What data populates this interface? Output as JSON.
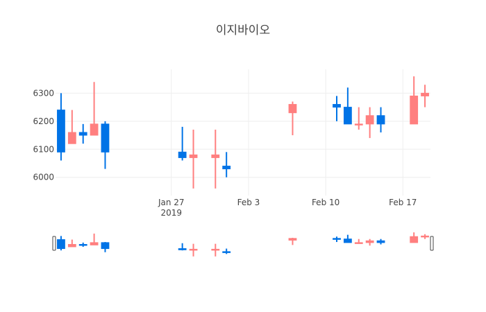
{
  "chart_data": {
    "type": "candlestick",
    "title": "이지바이오",
    "xlabel": "",
    "ylabel": "",
    "ylim": [
      5935,
      6385
    ],
    "yticks": [
      6000,
      6100,
      6200,
      6300
    ],
    "ytick_labels": [
      "6000",
      "6100",
      "6200",
      "6300"
    ],
    "xlim": [
      "2019-01-16",
      "2019-02-19"
    ],
    "xticks": [
      {
        "date": "2019-01-27",
        "label": "Jan 27",
        "sublabel": "2019"
      },
      {
        "date": "2019-02-03",
        "label": "Feb 3",
        "sublabel": ""
      },
      {
        "date": "2019-02-10",
        "label": "Feb 10",
        "sublabel": ""
      },
      {
        "date": "2019-02-17",
        "label": "Feb 17",
        "sublabel": ""
      }
    ],
    "grid": true,
    "increasing_color": "#ff7f7f",
    "decreasing_color": "#0073e6",
    "rangeslider": true,
    "candles": [
      {
        "date": "2019-01-17",
        "open": 6240,
        "high": 6300,
        "low": 6060,
        "close": 6090
      },
      {
        "date": "2019-01-18",
        "open": 6120,
        "high": 6240,
        "low": 6120,
        "close": 6160
      },
      {
        "date": "2019-01-19",
        "open": 6160,
        "high": 6190,
        "low": 6120,
        "close": 6150
      },
      {
        "date": "2019-01-20",
        "open": 6150,
        "high": 6340,
        "low": 6150,
        "close": 6190
      },
      {
        "date": "2019-01-21",
        "open": 6190,
        "high": 6200,
        "low": 6030,
        "close": 6090
      },
      {
        "date": "2019-01-28",
        "open": 6090,
        "high": 6180,
        "low": 6060,
        "close": 6070
      },
      {
        "date": "2019-01-29",
        "open": 6070,
        "high": 6170,
        "low": 5960,
        "close": 6080
      },
      {
        "date": "2019-01-31",
        "open": 6070,
        "high": 6170,
        "low": 5960,
        "close": 6080
      },
      {
        "date": "2019-02-01",
        "open": 6040,
        "high": 6090,
        "low": 6000,
        "close": 6030
      },
      {
        "date": "2019-02-07",
        "open": 6230,
        "high": 6270,
        "low": 6150,
        "close": 6260
      },
      {
        "date": "2019-02-11",
        "open": 6260,
        "high": 6290,
        "low": 6200,
        "close": 6250
      },
      {
        "date": "2019-02-12",
        "open": 6250,
        "high": 6320,
        "low": 6190,
        "close": 6190
      },
      {
        "date": "2019-02-13",
        "open": 6190,
        "high": 6250,
        "low": 6170,
        "close": 6190
      },
      {
        "date": "2019-02-14",
        "open": 6190,
        "high": 6250,
        "low": 6140,
        "close": 6220
      },
      {
        "date": "2019-02-15",
        "open": 6220,
        "high": 6250,
        "low": 6160,
        "close": 6190
      },
      {
        "date": "2019-02-18",
        "open": 6190,
        "high": 6360,
        "low": 6190,
        "close": 6290
      },
      {
        "date": "2019-02-19",
        "open": 6290,
        "high": 6330,
        "low": 6250,
        "close": 6300
      }
    ]
  }
}
